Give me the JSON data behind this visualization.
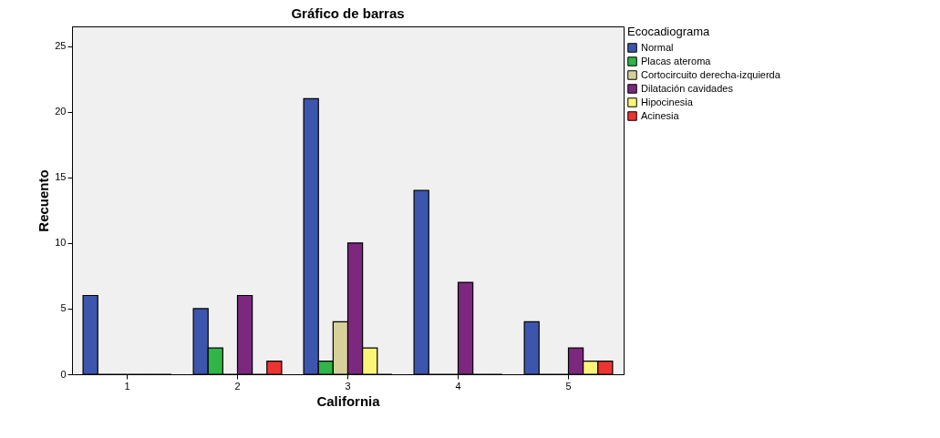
{
  "chart_data": {
    "type": "bar",
    "title": "Gráfico de barras",
    "xlabel": "California",
    "ylabel": "Recuento",
    "legend_title": "Ecocadiograma",
    "categories": [
      "1",
      "2",
      "3",
      "4",
      "5"
    ],
    "series": [
      {
        "name": "Normal",
        "color": "#3d56ad",
        "values": [
          6,
          5,
          21,
          14,
          4
        ]
      },
      {
        "name": "Placas ateroma",
        "color": "#2fb548",
        "values": [
          0,
          2,
          1,
          0,
          0
        ]
      },
      {
        "name": "Cortocircuito derecha-izquierda",
        "color": "#d6d09a",
        "values": [
          0,
          0,
          4,
          0,
          0
        ]
      },
      {
        "name": "Dilatación cavidades",
        "color": "#7b287e",
        "values": [
          0,
          6,
          10,
          7,
          2
        ]
      },
      {
        "name": "Hipocinesia",
        "color": "#fbf578",
        "values": [
          0,
          0,
          2,
          0,
          1
        ]
      },
      {
        "name": "Acinesia",
        "color": "#ee3333",
        "values": [
          0,
          1,
          0,
          0,
          1
        ]
      }
    ],
    "ylim": [
      0,
      26.5
    ],
    "yticks": [
      0,
      5,
      10,
      15,
      20,
      25
    ],
    "grid": false,
    "legend": "top right"
  }
}
